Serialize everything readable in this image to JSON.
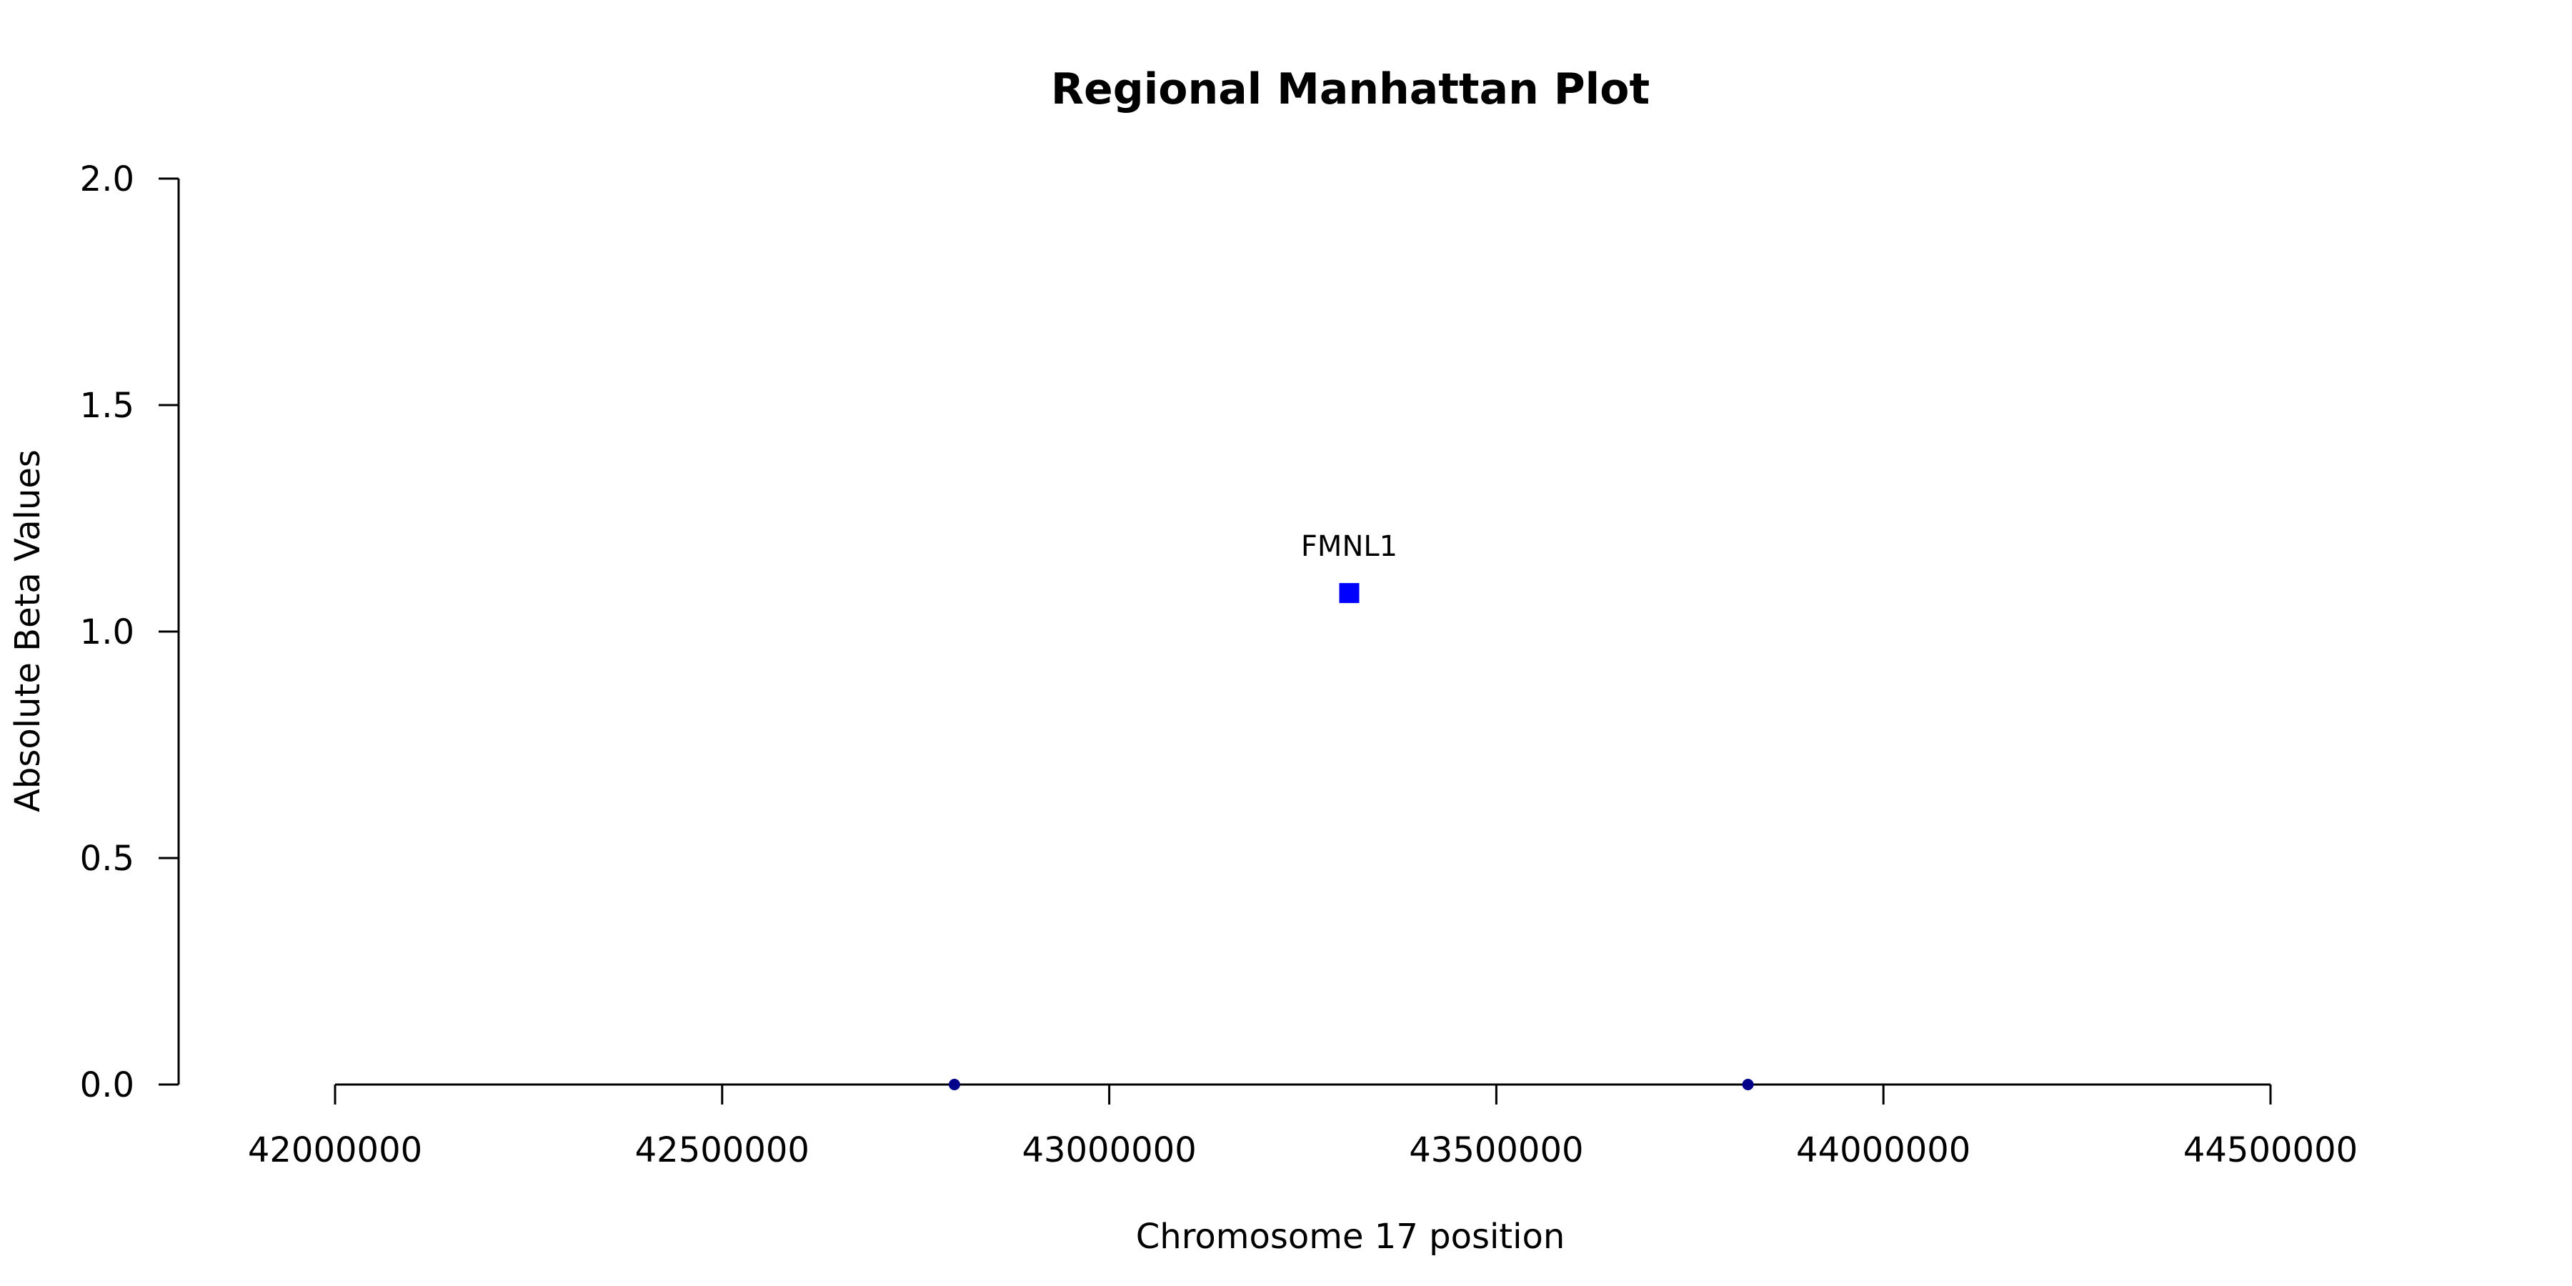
{
  "chart_data": {
    "type": "scatter",
    "title": "Regional Manhattan Plot",
    "xlabel": "Chromosome 17 position",
    "ylabel": "Absolute Beta Values",
    "xlim": [
      42000000,
      44500000
    ],
    "ylim": [
      0,
      2
    ],
    "xticks": [
      "42000000",
      "42500000",
      "43000000",
      "43500000",
      "44000000",
      "44500000"
    ],
    "yticks": [
      "0.0",
      "0.5",
      "1.0",
      "1.5",
      "2.0"
    ],
    "grid": false,
    "points": [
      {
        "x": 42800000,
        "y": 0.0,
        "shape": "circle",
        "color": "#00008b"
      },
      {
        "x": 43310000,
        "y": 1.085,
        "shape": "square",
        "color": "#0000ff",
        "label": "FMNL1"
      },
      {
        "x": 43825000,
        "y": 0.0,
        "shape": "circle",
        "color": "#00008b"
      }
    ]
  }
}
